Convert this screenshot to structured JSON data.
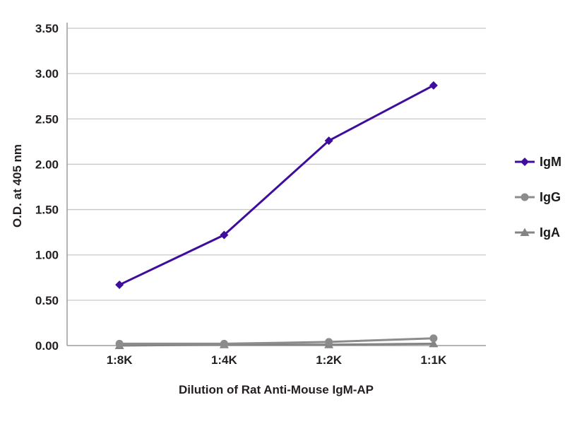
{
  "chart_data": {
    "type": "line",
    "categories": [
      "1:8K",
      "1:4K",
      "1:2K",
      "1:1K"
    ],
    "series": [
      {
        "name": "IgM",
        "marker": "diamond",
        "color": "#3f0d9e",
        "values": [
          0.67,
          1.22,
          2.26,
          2.87
        ]
      },
      {
        "name": "IgG",
        "marker": "circle",
        "color": "#8c8c8c",
        "values": [
          0.02,
          0.02,
          0.04,
          0.08
        ]
      },
      {
        "name": "IgA",
        "marker": "triangle",
        "color": "#848484",
        "values": [
          0.0,
          0.01,
          0.01,
          0.02
        ]
      }
    ],
    "title": "",
    "xlabel": "Dilution of Rat Anti-Mouse IgM-AP",
    "ylabel": "O.D. at 405 nm",
    "ylim": [
      0,
      3.5
    ],
    "ytick_step": 0.5,
    "ytick_labels": [
      "0.00",
      "0.50",
      "1.00",
      "1.50",
      "2.00",
      "2.50",
      "3.00",
      "3.50"
    ],
    "grid": "horizontal",
    "legend_position": "right"
  },
  "colors": {
    "background": "#ffffff",
    "grid": "#c8c8c8",
    "axis": "#9b9b9b",
    "text": "#231f20"
  }
}
